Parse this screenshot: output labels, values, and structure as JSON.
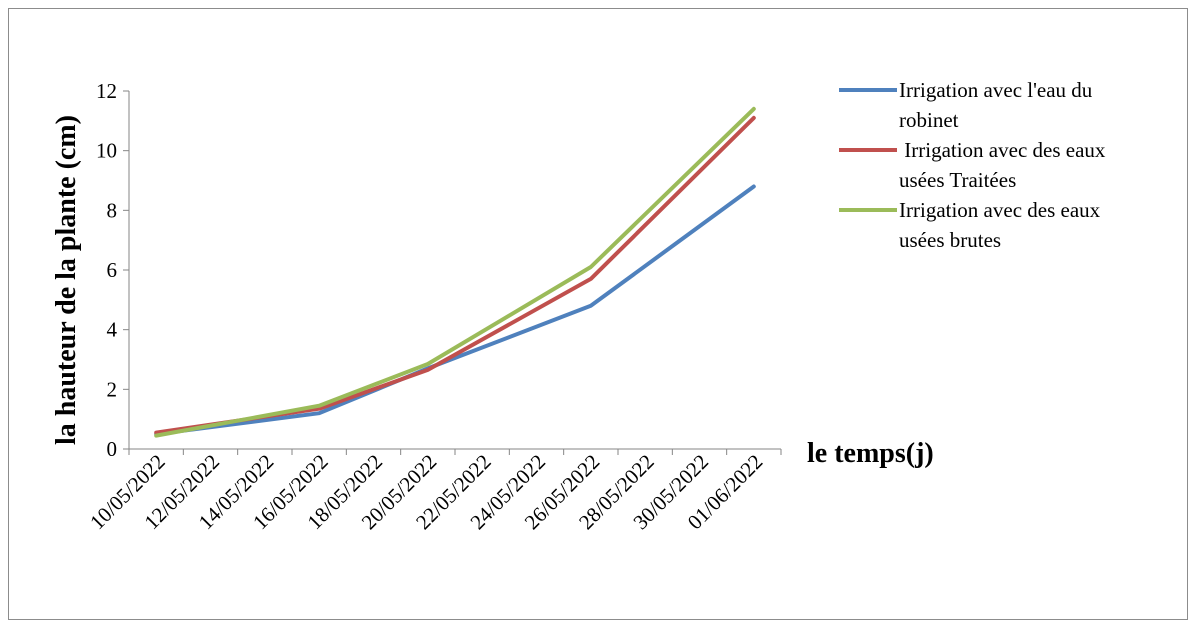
{
  "chart_data": {
    "type": "line",
    "title": "",
    "xlabel": "le temps(j)",
    "ylabel": "la hauteur de la plante (cm)",
    "ylim": [
      0,
      12
    ],
    "yticks": [
      "0",
      "2",
      "4",
      "6",
      "8",
      "10",
      "12"
    ],
    "categories": [
      "10/05/2022",
      "12/05/2022",
      "14/05/2022",
      "16/05/2022",
      "18/05/2022",
      "20/05/2022",
      "22/05/2022",
      "24/05/2022",
      "26/05/2022",
      "28/05/2022",
      "30/05/2022",
      "01/06/2022"
    ],
    "grid": false,
    "legend_position": "right",
    "series": [
      {
        "name": "Irrigation avec l'eau du robinet",
        "legend_lines": [
          "Irrigation avec l'eau du",
          "robinet"
        ],
        "color": "#4f81bd",
        "points": [
          {
            "x": "10/05/2022",
            "y": 0.5
          },
          {
            "x": "16/05/2022",
            "y": 1.2
          },
          {
            "x": "20/05/2022",
            "y": 2.7
          },
          {
            "x": "26/05/2022",
            "y": 4.8
          },
          {
            "x": "01/06/2022",
            "y": 8.8
          }
        ]
      },
      {
        "name": " Irrigation avec des eaux usées Traitées",
        "legend_lines": [
          " Irrigation avec des eaux",
          "usées Traitées"
        ],
        "color": "#c0504d",
        "points": [
          {
            "x": "10/05/2022",
            "y": 0.55
          },
          {
            "x": "16/05/2022",
            "y": 1.35
          },
          {
            "x": "20/05/2022",
            "y": 2.65
          },
          {
            "x": "26/05/2022",
            "y": 5.7
          },
          {
            "x": "01/06/2022",
            "y": 11.1
          }
        ]
      },
      {
        "name": "Irrigation avec des eaux usées brutes",
        "legend_lines": [
          "Irrigation avec des eaux",
          "usées brutes"
        ],
        "color": "#9bbb59",
        "points": [
          {
            "x": "10/05/2022",
            "y": 0.45
          },
          {
            "x": "16/05/2022",
            "y": 1.45
          },
          {
            "x": "20/05/2022",
            "y": 2.85
          },
          {
            "x": "26/05/2022",
            "y": 6.1
          },
          {
            "x": "01/06/2022",
            "y": 11.4
          }
        ]
      }
    ]
  }
}
